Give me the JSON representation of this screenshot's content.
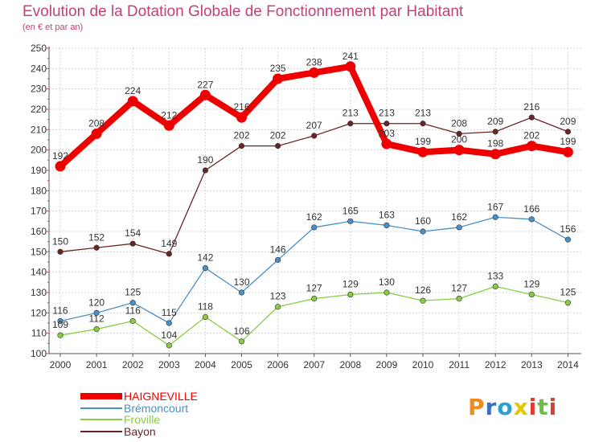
{
  "chart_data": {
    "type": "line",
    "title": "Evolution de la Dotation Globale de Fonctionnement par Habitant",
    "subtitle": "(en € et par an)",
    "categories": [
      "2000",
      "2001",
      "2002",
      "2003",
      "2004",
      "2005",
      "2006",
      "2007",
      "2008",
      "2009",
      "2010",
      "2011",
      "2012",
      "2013",
      "2014"
    ],
    "ylim": [
      100,
      250
    ],
    "yticks": [
      100,
      110,
      120,
      130,
      140,
      150,
      160,
      170,
      180,
      190,
      200,
      210,
      220,
      230,
      240,
      250
    ],
    "grid": true,
    "legend_position": "bottom-left",
    "series": [
      {
        "name": "HAIGNEVILLE",
        "color": "#ee0000",
        "values": [
          192,
          208,
          224,
          212,
          227,
          216,
          235,
          238,
          241,
          203,
          199,
          200,
          198,
          202,
          199
        ]
      },
      {
        "name": "Brémoncourt",
        "color": "#4a90c8",
        "values": [
          116,
          120,
          125,
          115,
          142,
          130,
          146,
          162,
          165,
          163,
          160,
          162,
          167,
          166,
          156
        ]
      },
      {
        "name": "Froville",
        "color": "#88cc44",
        "values": [
          109,
          112,
          116,
          104,
          118,
          106,
          123,
          127,
          129,
          130,
          126,
          127,
          133,
          129,
          125
        ]
      },
      {
        "name": "Bayon",
        "color": "#6b2424",
        "values": [
          150,
          152,
          154,
          149,
          190,
          202,
          202,
          207,
          213,
          213,
          213,
          208,
          209,
          216,
          209
        ]
      }
    ]
  },
  "logo": {
    "text": "Proxiti",
    "letter_colors": [
      "#f08a1c",
      "#3a6fc4",
      "#2a9fd6",
      "#e8c400",
      "#e23b2b",
      "#6cbf3f",
      "#e23b2b"
    ]
  }
}
